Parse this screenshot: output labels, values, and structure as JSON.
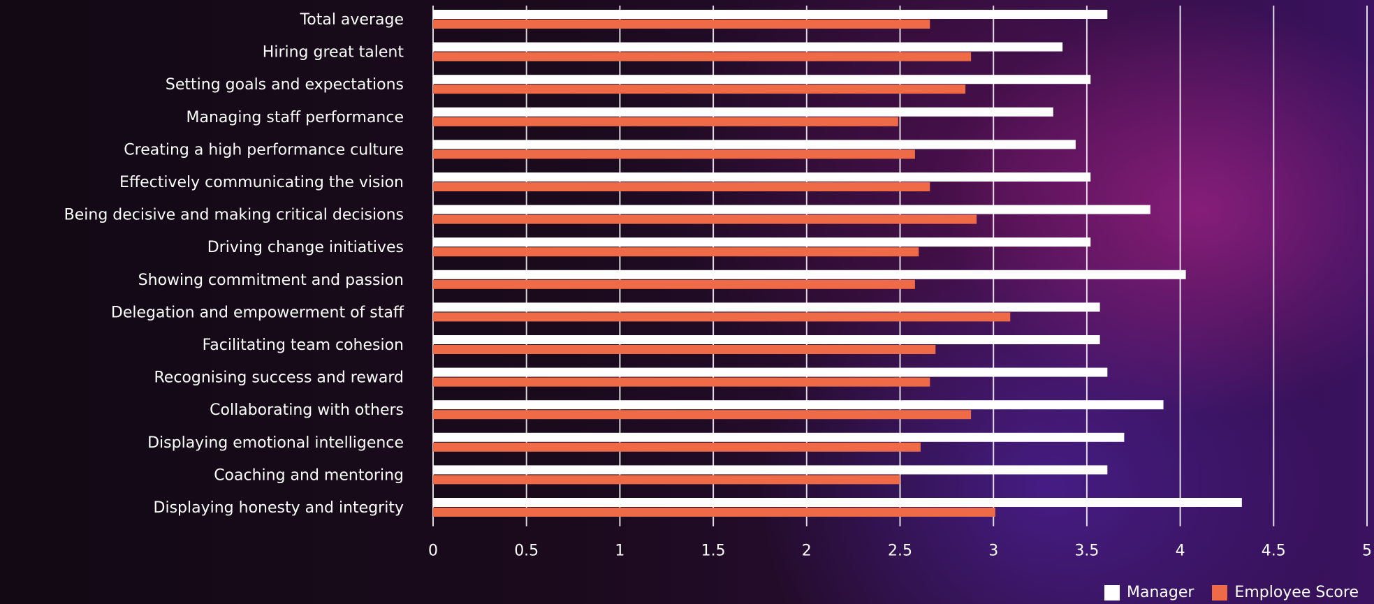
{
  "chart_data": {
    "type": "bar",
    "orientation": "horizontal",
    "categories": [
      "Total average",
      "Hiring great talent",
      "Setting goals and expectations",
      "Managing staff performance",
      "Creating a high performance culture",
      "Effectively communicating the vision",
      "Being decisive and making critical decisions",
      "Driving change initiatives",
      "Showing commitment and passion",
      "Delegation and empowerment of staff",
      "Facilitating team cohesion",
      "Recognising success and reward",
      "Collaborating with others",
      "Displaying emotional intelligence",
      "Coaching and mentoring",
      "Displaying honesty and integrity"
    ],
    "series": [
      {
        "name": "Manager",
        "color": "#ffffff",
        "values": [
          3.61,
          3.37,
          3.52,
          3.32,
          3.44,
          3.52,
          3.84,
          3.52,
          4.03,
          3.57,
          3.57,
          3.61,
          3.91,
          3.7,
          3.61,
          4.33
        ]
      },
      {
        "name": "Employee Score",
        "color": "#ef6b48",
        "values": [
          2.66,
          2.88,
          2.85,
          2.49,
          2.58,
          2.66,
          2.91,
          2.6,
          2.58,
          3.09,
          2.69,
          2.66,
          2.88,
          2.61,
          2.5,
          3.01
        ]
      }
    ],
    "xlim": [
      0,
      5
    ],
    "xticks": [
      "0",
      "0.5",
      "1",
      "1.5",
      "2",
      "2.5",
      "3",
      "3.5",
      "4",
      "4.5",
      "5"
    ],
    "grid": true,
    "legend_position": "bottom-right"
  }
}
